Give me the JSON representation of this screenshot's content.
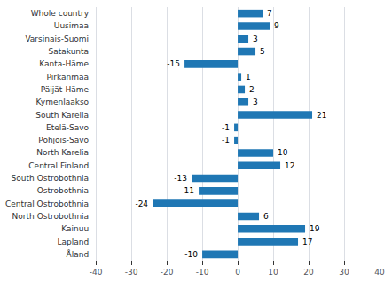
{
  "chart_data": {
    "type": "bar",
    "orientation": "horizontal",
    "categories": [
      "Whole country",
      "Uusimaa",
      "Varsinais-Suomi",
      "Satakunta",
      "Kanta-Häme",
      "Pirkanmaa",
      "Päijät-Häme",
      "Kymenlaakso",
      "South Karelia",
      "Etelä-Savo",
      "Pohjois-Savo",
      "North Karelia",
      "Central Finland",
      "South Ostrobothnia",
      "Ostrobothnia",
      "Central Ostrobothnia",
      "North Ostrobothnia",
      "Kainuu",
      "Lapland",
      "Åland"
    ],
    "values": [
      7,
      9,
      3,
      5,
      -15,
      1,
      2,
      3,
      21,
      -1,
      -1,
      10,
      12,
      -13,
      -11,
      -24,
      6,
      19,
      17,
      -10
    ],
    "color": "#1F77B4",
    "xlim": [
      -40,
      40
    ],
    "xticks": [
      -40,
      -30,
      -20,
      -10,
      0,
      10,
      20,
      30,
      40
    ],
    "grid": true,
    "data_labels": true
  }
}
